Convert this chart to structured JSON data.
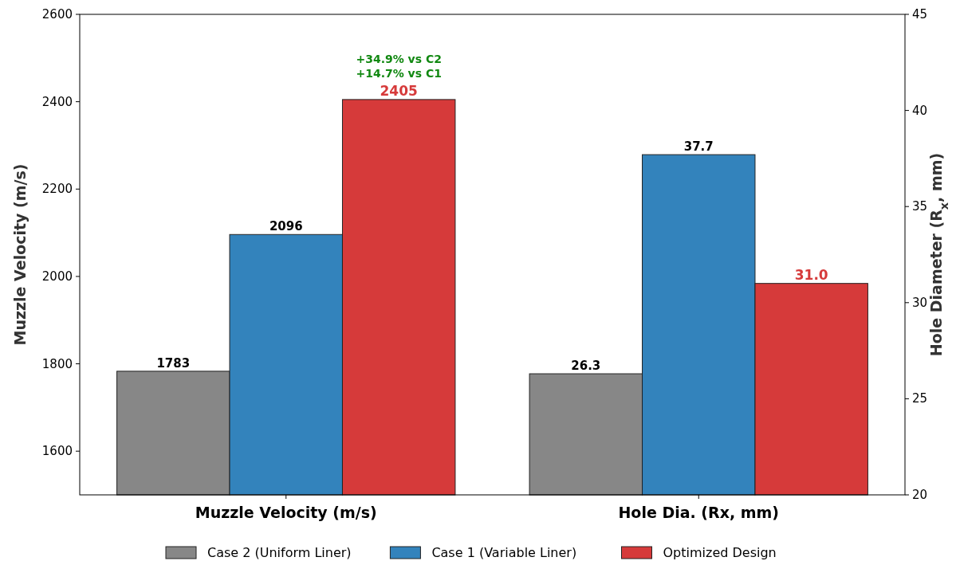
{
  "chart_data": {
    "type": "bar",
    "categories": [
      "Muzzle Velocity (m/s)",
      "Hole Dia. (Rx, mm)"
    ],
    "ylabel": "Muzzle Velocity (m/s)",
    "y2label": "Hole Diameter (R$_{x}$, mm)",
    "ylim": [
      1500,
      2600
    ],
    "yticks": [
      1600,
      1800,
      2000,
      2200,
      2400,
      2600
    ],
    "y2lim": [
      20,
      45
    ],
    "y2ticks": [
      20,
      25,
      30,
      35,
      40,
      45
    ],
    "series": [
      {
        "name": "Case 2 (Uniform Liner)",
        "color": "#878787",
        "values": [
          1783,
          null
        ]
      },
      {
        "name": "Case 1 (Variable Liner)",
        "color": "#3383bc",
        "values": [
          2096,
          null
        ]
      },
      {
        "name": "Optimized Design",
        "color": "#d63a3a",
        "values": [
          2405,
          null
        ]
      },
      {
        "color": "#878787",
        "values": [
          null,
          26.3
        ],
        "value_labels": [
          null,
          "26.3"
        ],
        "axis": "y2"
      },
      {
        "color": "#3383bc",
        "values": [
          null,
          37.7
        ],
        "value_labels": [
          null,
          "37.7"
        ],
        "axis": "y2"
      },
      {
        "color": "#d63a3a",
        "values": [
          null,
          31.0
        ],
        "value_labels": [
          null,
          "31.0"
        ],
        "axis": "y2"
      }
    ],
    "data_labels": true,
    "annotations": [
      "+34.9% vs C2",
      "+14.7% vs C1"
    ],
    "legend": "bottom"
  }
}
